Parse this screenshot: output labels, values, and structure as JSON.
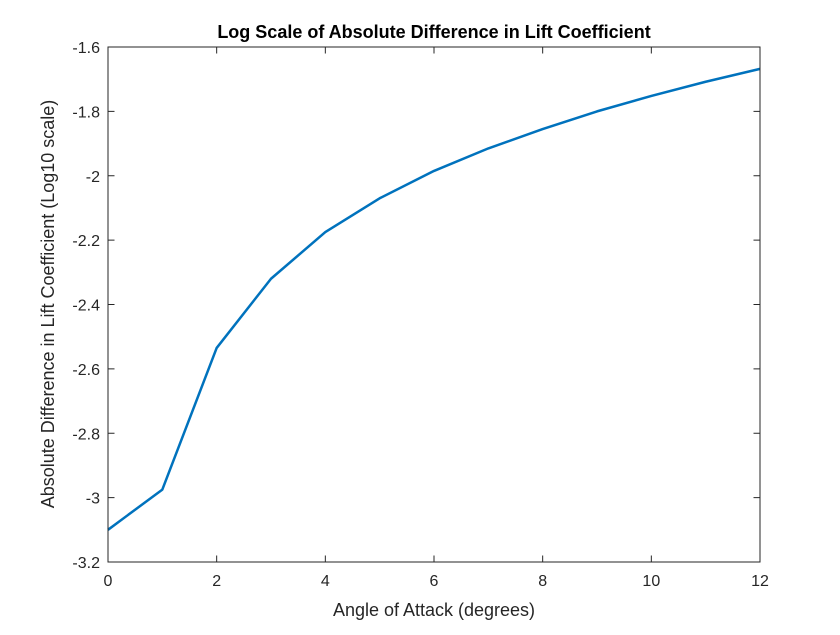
{
  "chart_data": {
    "type": "line",
    "title": "Log Scale of Absolute Difference in Lift Coefficient",
    "xlabel": "Angle of Attack (degrees)",
    "ylabel": "Absolute Difference in Lift Coefficient (Log10 scale)",
    "xlim": [
      0,
      12
    ],
    "ylim": [
      -3.2,
      -1.6
    ],
    "xticks": [
      0,
      2,
      4,
      6,
      8,
      10,
      12
    ],
    "yticks": [
      -1.6,
      -1.8,
      -2.0,
      -2.2,
      -2.4,
      -2.6,
      -2.8,
      -3.0,
      -3.2
    ],
    "xtick_labels": [
      "0",
      "2",
      "4",
      "6",
      "8",
      "10",
      "12"
    ],
    "ytick_labels": [
      "-1.6",
      "-1.8",
      "-2",
      "-2.2",
      "-2.4",
      "-2.6",
      "-2.8",
      "-3",
      "-3.2"
    ],
    "grid": false,
    "series": [
      {
        "color": "#0072BD",
        "x": [
          0,
          1,
          2,
          3,
          4,
          5,
          6,
          7,
          8,
          9,
          10,
          11,
          12
        ],
        "y": [
          -3.1,
          -2.975,
          -2.535,
          -2.32,
          -2.175,
          -2.07,
          -1.985,
          -1.915,
          -1.855,
          -1.8,
          -1.752,
          -1.708,
          -1.668
        ]
      }
    ]
  }
}
